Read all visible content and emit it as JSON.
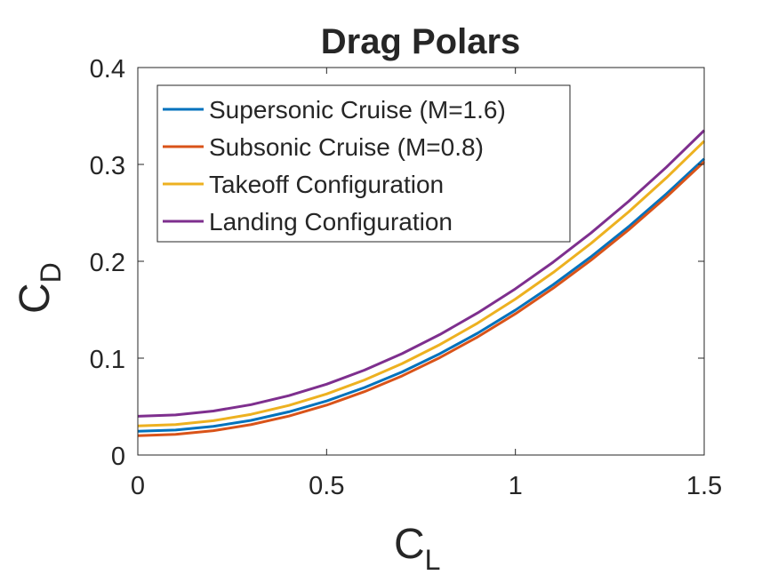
{
  "chart_data": {
    "type": "line",
    "title": "Drag Polars",
    "xlabel": {
      "main": "C",
      "sub": "L"
    },
    "ylabel": {
      "main": "C",
      "sub": "D"
    },
    "xlim": [
      0,
      1.5
    ],
    "ylim": [
      0,
      0.4
    ],
    "xticks": [
      0,
      0.5,
      1,
      1.5
    ],
    "xtick_labels": [
      "0",
      "0.5",
      "1",
      "1.5"
    ],
    "yticks": [
      0,
      0.1,
      0.2,
      0.3,
      0.4
    ],
    "ytick_labels": [
      "0",
      "0.1",
      "0.2",
      "0.3",
      "0.4"
    ],
    "grid": false,
    "legend_position": "top-left",
    "x": [
      0,
      0.1,
      0.2,
      0.3,
      0.4,
      0.5,
      0.6,
      0.7,
      0.8,
      0.9,
      1.0,
      1.1,
      1.2,
      1.3,
      1.4,
      1.5
    ],
    "series": [
      {
        "name": "Supersonic Cruise (M=1.6)",
        "color": "#0072BD",
        "values": [
          0.0245,
          0.0258,
          0.0296,
          0.0358,
          0.0446,
          0.0558,
          0.0696,
          0.0858,
          0.1046,
          0.1258,
          0.1496,
          0.1758,
          0.2046,
          0.2358,
          0.2696,
          0.3058
        ]
      },
      {
        "name": "Subsonic Cruise (M=0.8)",
        "color": "#D95319",
        "values": [
          0.02,
          0.0213,
          0.0251,
          0.0314,
          0.0402,
          0.0515,
          0.0654,
          0.0817,
          0.1006,
          0.1219,
          0.1458,
          0.1722,
          0.2011,
          0.2325,
          0.2664,
          0.3028
        ]
      },
      {
        "name": "Takeoff Configuration",
        "color": "#EDB120",
        "values": [
          0.03,
          0.0314,
          0.0354,
          0.042,
          0.0512,
          0.063,
          0.0774,
          0.0944,
          0.114,
          0.1362,
          0.161,
          0.1884,
          0.2184,
          0.251,
          0.2862,
          0.324
        ]
      },
      {
        "name": "Landing Configuration",
        "color": "#7E2F8E",
        "values": [
          0.04,
          0.0414,
          0.0454,
          0.052,
          0.0613,
          0.0731,
          0.0876,
          0.1047,
          0.1244,
          0.1467,
          0.1716,
          0.1991,
          0.2292,
          0.2619,
          0.2972,
          0.3351
        ]
      }
    ]
  }
}
